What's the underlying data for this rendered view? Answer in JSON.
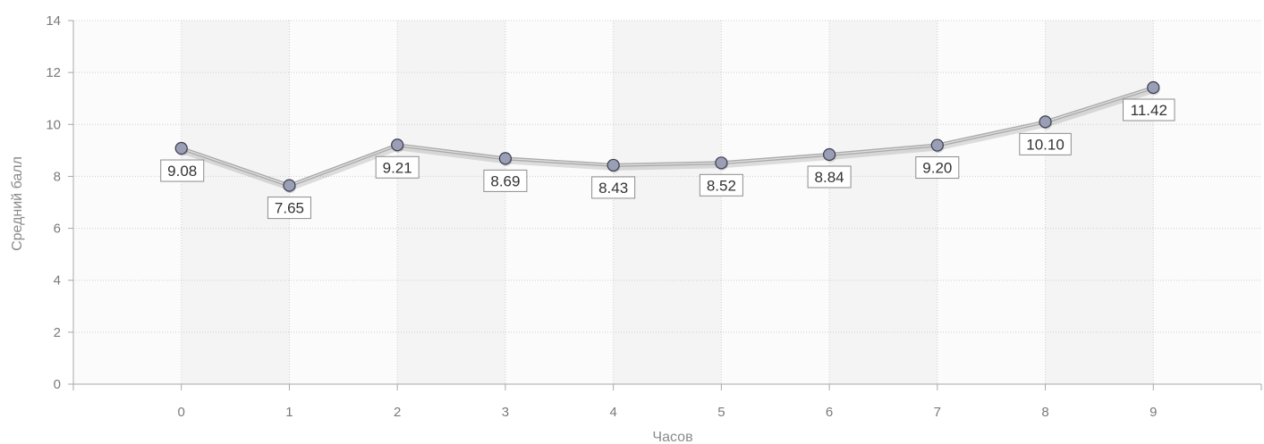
{
  "chart_data": {
    "type": "line",
    "title": "",
    "xlabel": "Часов",
    "ylabel": "Средний балл",
    "x": [
      0,
      1,
      2,
      3,
      4,
      5,
      6,
      7,
      8,
      9
    ],
    "xlim": [
      -1,
      10
    ],
    "ylim": [
      0,
      14
    ],
    "yticks": [
      0,
      2,
      4,
      6,
      8,
      10,
      12,
      14
    ],
    "series": [
      {
        "values": [
          9.08,
          7.65,
          9.21,
          8.69,
          8.43,
          8.52,
          8.84,
          9.2,
          10.1,
          11.42
        ],
        "data_labels": [
          "9.08",
          "7.65",
          "9.21",
          "8.69",
          "8.43",
          "8.52",
          "8.84",
          "9.20",
          "10.10",
          "11.42"
        ]
      }
    ],
    "grid": true,
    "legend": "none",
    "colors": {
      "line": "#aaaaaa",
      "marker_fill": "#9a9fb5",
      "marker_stroke": "#3c3c50",
      "band_light": "#fbfbfb",
      "band_dark": "#f4f4f4",
      "grid": "#cfcfcf"
    }
  }
}
